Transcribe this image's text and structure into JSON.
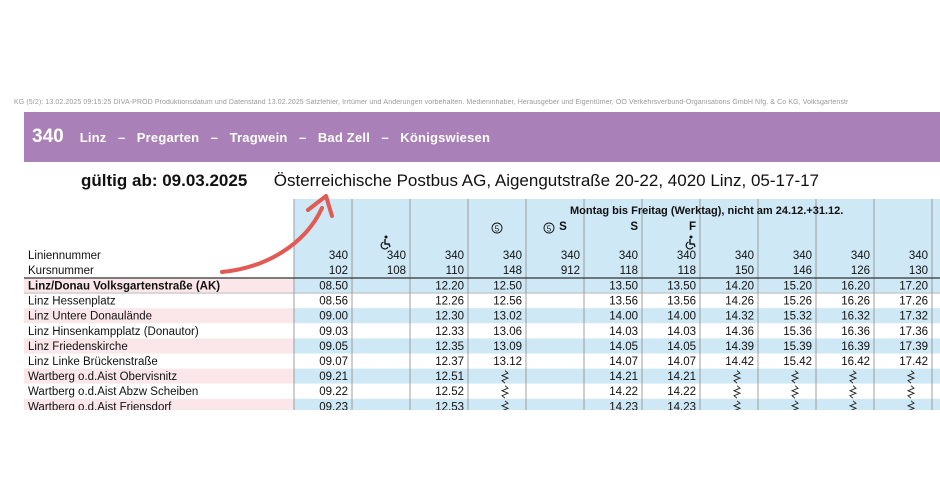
{
  "legal_note": "KG (5/2): 13.02.2025 09:15:25 DIVA-PROD Produktionsdatum und Datenstand 13.02.2025 Satzfehler, Irrtümer und Änderungen vorbehalten. Medieninhaber, Herausgeber und Eigentümer, OÖ Verkehrsverbund-Organisations GmbH Nfg. & Co KG, Volksgartenstr",
  "route": {
    "number": "340",
    "stops_line": "Linz   –   Pregarten   –   Tragwein   –   Bad Zell   –   Königswiesen"
  },
  "valid_from": "gültig ab: 09.03.2025",
  "operator": "Österreichische Postbus AG, Aigengutstraße 20-22, 4020 Linz, 05-17-17",
  "timetable": {
    "service_days": "Montag bis Freitag (Werktag), nicht am 24.12.+31.12.",
    "row_labels": {
      "line": "Liniennummer",
      "course": "Kursnummer"
    },
    "columns": [
      {
        "line": "340",
        "course": "102",
        "marks": []
      },
      {
        "line": "340",
        "course": "108",
        "marks": [
          "wheelchair"
        ]
      },
      {
        "line": "340",
        "course": "110",
        "marks": []
      },
      {
        "line": "340",
        "course": "148",
        "marks": [
          "5"
        ]
      },
      {
        "line": "340",
        "course": "912",
        "marks": [
          "5",
          "S"
        ]
      },
      {
        "line": "340",
        "course": "118",
        "marks": [
          "S"
        ]
      },
      {
        "line": "340",
        "course": "118",
        "marks": [
          "F",
          "wheelchair"
        ]
      },
      {
        "line": "340",
        "course": "150",
        "marks": []
      },
      {
        "line": "340",
        "course": "146",
        "marks": []
      },
      {
        "line": "340",
        "course": "126",
        "marks": []
      },
      {
        "line": "340",
        "course": "130",
        "marks": []
      }
    ],
    "stops": [
      {
        "name": "Linz/Donau Volksgartenstraße (AK)",
        "bold": true,
        "times": [
          "08.50",
          "",
          "12.20",
          "12.50",
          "",
          "13.50",
          "13.50",
          "14.20",
          "15.20",
          "16.20",
          "17.20"
        ]
      },
      {
        "name": "Linz Hessenplatz",
        "bold": false,
        "times": [
          "08.56",
          "",
          "12.26",
          "12.56",
          "",
          "13.56",
          "13.56",
          "14.26",
          "15.26",
          "16.26",
          "17.26"
        ]
      },
      {
        "name": "Linz Untere Donaulände",
        "bold": false,
        "times": [
          "09.00",
          "",
          "12.30",
          "13.02",
          "",
          "14.00",
          "14.00",
          "14.32",
          "15.32",
          "16.32",
          "17.32"
        ]
      },
      {
        "name": "Linz Hinsenkampplatz (Donautor)",
        "bold": false,
        "times": [
          "09.03",
          "",
          "12.33",
          "13.06",
          "",
          "14.03",
          "14.03",
          "14.36",
          "15.36",
          "16.36",
          "17.36"
        ]
      },
      {
        "name": "Linz Friedenskirche",
        "bold": false,
        "times": [
          "09.05",
          "",
          "12.35",
          "13.09",
          "",
          "14.05",
          "14.05",
          "14.39",
          "15.39",
          "16.39",
          "17.39"
        ]
      },
      {
        "name": "Linz Linke Brückenstraße",
        "bold": false,
        "times": [
          "09.07",
          "",
          "12.37",
          "13.12",
          "",
          "14.07",
          "14.07",
          "14.42",
          "15.42",
          "16.42",
          "17.42"
        ]
      },
      {
        "name": "Wartberg o.d.Aist Obervisnitz",
        "bold": false,
        "times": [
          "09.21",
          "",
          "12.51",
          "~",
          "",
          "14.21",
          "14.21",
          "~",
          "~",
          "~",
          "~"
        ]
      },
      {
        "name": "Wartberg o.d.Aist Abzw Scheiben",
        "bold": false,
        "times": [
          "09.22",
          "",
          "12.52",
          "~",
          "",
          "14.22",
          "14.22",
          "~",
          "~",
          "~",
          "~"
        ]
      },
      {
        "name": "Wartberg o.d.Aist Friensdorf",
        "bold": false,
        "times": [
          "09.23",
          "",
          "12.53",
          "~",
          "",
          "14.23",
          "14.23",
          "~",
          "~",
          "~",
          "~"
        ]
      }
    ]
  },
  "colors": {
    "route_bar": "#a981b8",
    "column_blue": "#cfe8f6",
    "row_pink": "#fbe7ea",
    "arrow": "#e15b54",
    "grid": "#8a8a8a"
  }
}
